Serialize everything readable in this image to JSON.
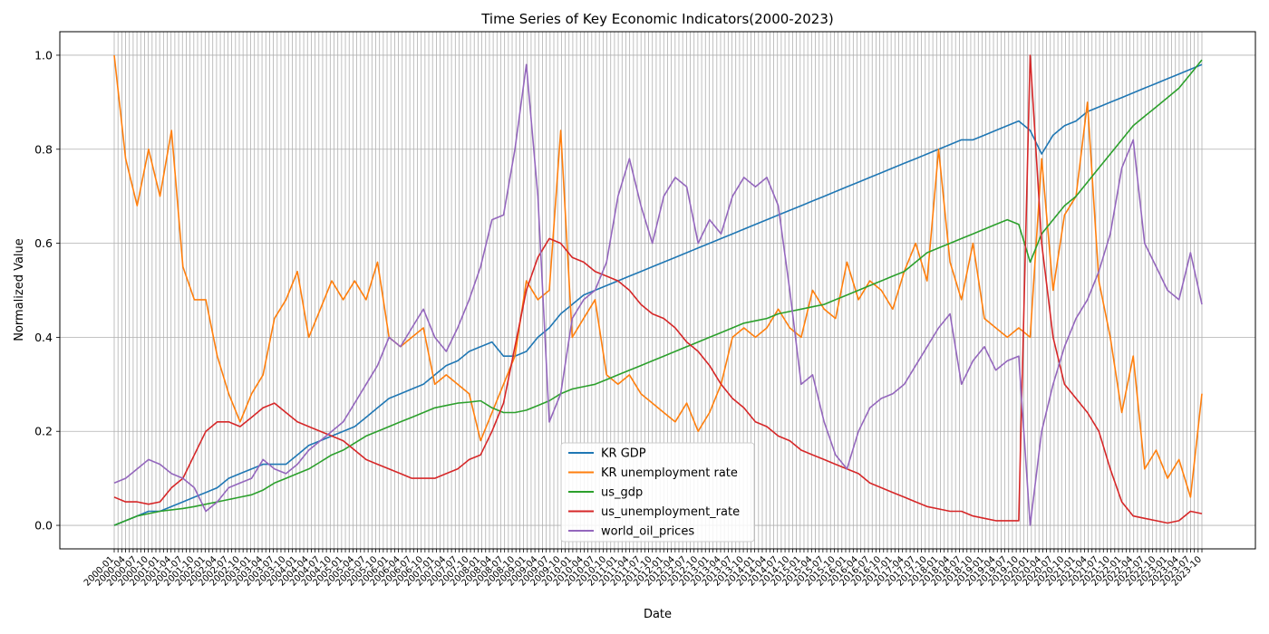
{
  "chart_data": {
    "type": "line",
    "title": "Time Series of Key Economic Indicators(2000-2023)",
    "xlabel": "Date",
    "ylabel": "Normalized Value",
    "ylim": [
      -0.05,
      1.05
    ],
    "yticks": [
      "0.0",
      "0.2",
      "0.4",
      "0.6",
      "0.8",
      "1.0"
    ],
    "grid": true,
    "legend_position": "lower-center",
    "x_ticks_note": "unreadable overlapping monthly date labels",
    "x": [
      "2000-01",
      "2000-04",
      "2000-07",
      "2000-10",
      "2001-01",
      "2001-04",
      "2001-07",
      "2001-10",
      "2002-01",
      "2002-04",
      "2002-07",
      "2002-10",
      "2003-01",
      "2003-04",
      "2003-07",
      "2003-10",
      "2004-01",
      "2004-04",
      "2004-07",
      "2004-10",
      "2005-01",
      "2005-04",
      "2005-07",
      "2005-10",
      "2006-01",
      "2006-04",
      "2006-07",
      "2006-10",
      "2007-01",
      "2007-04",
      "2007-07",
      "2007-10",
      "2008-01",
      "2008-04",
      "2008-07",
      "2008-10",
      "2009-01",
      "2009-04",
      "2009-07",
      "2009-10",
      "2010-01",
      "2010-04",
      "2010-07",
      "2010-10",
      "2011-01",
      "2011-04",
      "2011-07",
      "2011-10",
      "2012-01",
      "2012-04",
      "2012-07",
      "2012-10",
      "2013-01",
      "2013-04",
      "2013-07",
      "2013-10",
      "2014-01",
      "2014-04",
      "2014-07",
      "2014-10",
      "2015-01",
      "2015-04",
      "2015-07",
      "2015-10",
      "2016-01",
      "2016-04",
      "2016-07",
      "2016-10",
      "2017-01",
      "2017-04",
      "2017-07",
      "2017-10",
      "2018-01",
      "2018-04",
      "2018-07",
      "2018-10",
      "2019-01",
      "2019-04",
      "2019-07",
      "2019-10",
      "2020-01",
      "2020-04",
      "2020-07",
      "2020-10",
      "2021-01",
      "2021-04",
      "2021-07",
      "2021-10",
      "2022-01",
      "2022-04",
      "2022-07",
      "2022-10",
      "2023-01",
      "2023-04",
      "2023-07",
      "2023-10"
    ],
    "series": [
      {
        "name": "KR GDP",
        "color": "#1f77b4",
        "values": [
          0.0,
          0.01,
          0.02,
          0.03,
          0.03,
          0.04,
          0.05,
          0.06,
          0.07,
          0.08,
          0.1,
          0.11,
          0.12,
          0.13,
          0.13,
          0.13,
          0.15,
          0.17,
          0.18,
          0.19,
          0.2,
          0.21,
          0.23,
          0.25,
          0.27,
          0.28,
          0.29,
          0.3,
          0.32,
          0.34,
          0.35,
          0.37,
          0.38,
          0.39,
          0.36,
          0.36,
          0.37,
          0.4,
          0.42,
          0.45,
          0.47,
          0.49,
          0.5,
          0.51,
          0.52,
          0.53,
          0.54,
          0.55,
          0.56,
          0.57,
          0.58,
          0.59,
          0.6,
          0.61,
          0.62,
          0.63,
          0.64,
          0.65,
          0.66,
          0.67,
          0.68,
          0.69,
          0.7,
          0.71,
          0.72,
          0.73,
          0.74,
          0.75,
          0.76,
          0.77,
          0.78,
          0.79,
          0.8,
          0.81,
          0.82,
          0.82,
          0.83,
          0.84,
          0.85,
          0.86,
          0.84,
          0.79,
          0.83,
          0.85,
          0.86,
          0.88,
          0.89,
          0.9,
          0.91,
          0.92,
          0.93,
          0.94,
          0.95,
          0.96,
          0.97,
          0.98
        ]
      },
      {
        "name": "KR unemployment rate",
        "color": "#ff7f0e",
        "values": [
          1.0,
          0.78,
          0.68,
          0.8,
          0.7,
          0.84,
          0.55,
          0.48,
          0.48,
          0.36,
          0.28,
          0.22,
          0.28,
          0.32,
          0.44,
          0.48,
          0.54,
          0.4,
          0.46,
          0.52,
          0.48,
          0.52,
          0.48,
          0.56,
          0.4,
          0.38,
          0.4,
          0.42,
          0.3,
          0.32,
          0.3,
          0.28,
          0.18,
          0.24,
          0.3,
          0.36,
          0.52,
          0.48,
          0.5,
          0.84,
          0.4,
          0.44,
          0.48,
          0.32,
          0.3,
          0.32,
          0.28,
          0.26,
          0.24,
          0.22,
          0.26,
          0.2,
          0.24,
          0.3,
          0.4,
          0.42,
          0.4,
          0.42,
          0.46,
          0.42,
          0.4,
          0.5,
          0.46,
          0.44,
          0.56,
          0.48,
          0.52,
          0.5,
          0.46,
          0.54,
          0.6,
          0.52,
          0.8,
          0.56,
          0.48,
          0.6,
          0.44,
          0.42,
          0.4,
          0.42,
          0.4,
          0.78,
          0.5,
          0.66,
          0.7,
          0.9,
          0.52,
          0.4,
          0.24,
          0.36,
          0.12,
          0.16,
          0.1,
          0.14,
          0.06,
          0.28
        ]
      },
      {
        "name": "us_gdp",
        "color": "#2ca02c",
        "values": [
          0.0,
          0.01,
          0.02,
          0.025,
          0.03,
          0.033,
          0.036,
          0.04,
          0.045,
          0.05,
          0.055,
          0.06,
          0.065,
          0.075,
          0.09,
          0.1,
          0.11,
          0.12,
          0.135,
          0.15,
          0.16,
          0.175,
          0.19,
          0.2,
          0.21,
          0.22,
          0.23,
          0.24,
          0.25,
          0.255,
          0.26,
          0.262,
          0.265,
          0.25,
          0.24,
          0.24,
          0.245,
          0.255,
          0.265,
          0.28,
          0.29,
          0.295,
          0.3,
          0.31,
          0.32,
          0.33,
          0.34,
          0.35,
          0.36,
          0.37,
          0.38,
          0.39,
          0.4,
          0.41,
          0.42,
          0.43,
          0.435,
          0.44,
          0.45,
          0.455,
          0.46,
          0.465,
          0.47,
          0.48,
          0.49,
          0.5,
          0.51,
          0.52,
          0.53,
          0.54,
          0.56,
          0.58,
          0.59,
          0.6,
          0.61,
          0.62,
          0.63,
          0.64,
          0.65,
          0.64,
          0.56,
          0.62,
          0.65,
          0.68,
          0.7,
          0.73,
          0.76,
          0.79,
          0.82,
          0.85,
          0.87,
          0.89,
          0.91,
          0.93,
          0.96,
          0.99
        ]
      },
      {
        "name": "us_unemployment_rate",
        "color": "#d62728",
        "values": [
          0.06,
          0.05,
          0.05,
          0.045,
          0.05,
          0.08,
          0.1,
          0.15,
          0.2,
          0.22,
          0.22,
          0.21,
          0.23,
          0.25,
          0.26,
          0.24,
          0.22,
          0.21,
          0.2,
          0.19,
          0.18,
          0.16,
          0.14,
          0.13,
          0.12,
          0.11,
          0.1,
          0.1,
          0.1,
          0.11,
          0.12,
          0.14,
          0.15,
          0.2,
          0.26,
          0.38,
          0.5,
          0.57,
          0.61,
          0.6,
          0.57,
          0.56,
          0.54,
          0.53,
          0.52,
          0.5,
          0.47,
          0.45,
          0.44,
          0.42,
          0.39,
          0.37,
          0.34,
          0.3,
          0.27,
          0.25,
          0.22,
          0.21,
          0.19,
          0.18,
          0.16,
          0.15,
          0.14,
          0.13,
          0.12,
          0.11,
          0.09,
          0.08,
          0.07,
          0.06,
          0.05,
          0.04,
          0.035,
          0.03,
          0.03,
          0.02,
          0.015,
          0.01,
          0.01,
          0.01,
          1.0,
          0.6,
          0.4,
          0.3,
          0.27,
          0.24,
          0.2,
          0.12,
          0.05,
          0.02,
          0.015,
          0.01,
          0.005,
          0.01,
          0.03,
          0.025
        ]
      },
      {
        "name": "world_oil_prices",
        "color": "#9467bd",
        "values": [
          0.09,
          0.1,
          0.12,
          0.14,
          0.13,
          0.11,
          0.1,
          0.08,
          0.03,
          0.05,
          0.08,
          0.09,
          0.1,
          0.14,
          0.12,
          0.11,
          0.13,
          0.16,
          0.18,
          0.2,
          0.22,
          0.26,
          0.3,
          0.34,
          0.4,
          0.38,
          0.42,
          0.46,
          0.4,
          0.37,
          0.42,
          0.48,
          0.55,
          0.65,
          0.66,
          0.8,
          0.98,
          0.7,
          0.22,
          0.28,
          0.44,
          0.48,
          0.5,
          0.56,
          0.7,
          0.78,
          0.68,
          0.6,
          0.7,
          0.74,
          0.72,
          0.6,
          0.65,
          0.62,
          0.7,
          0.74,
          0.72,
          0.74,
          0.68,
          0.5,
          0.3,
          0.32,
          0.22,
          0.15,
          0.12,
          0.2,
          0.25,
          0.27,
          0.28,
          0.3,
          0.34,
          0.38,
          0.42,
          0.45,
          0.3,
          0.35,
          0.38,
          0.33,
          0.35,
          0.36,
          0.0,
          0.2,
          0.3,
          0.38,
          0.44,
          0.48,
          0.54,
          0.62,
          0.76,
          0.82,
          0.6,
          0.55,
          0.5,
          0.48,
          0.58,
          0.47
        ]
      }
    ]
  }
}
